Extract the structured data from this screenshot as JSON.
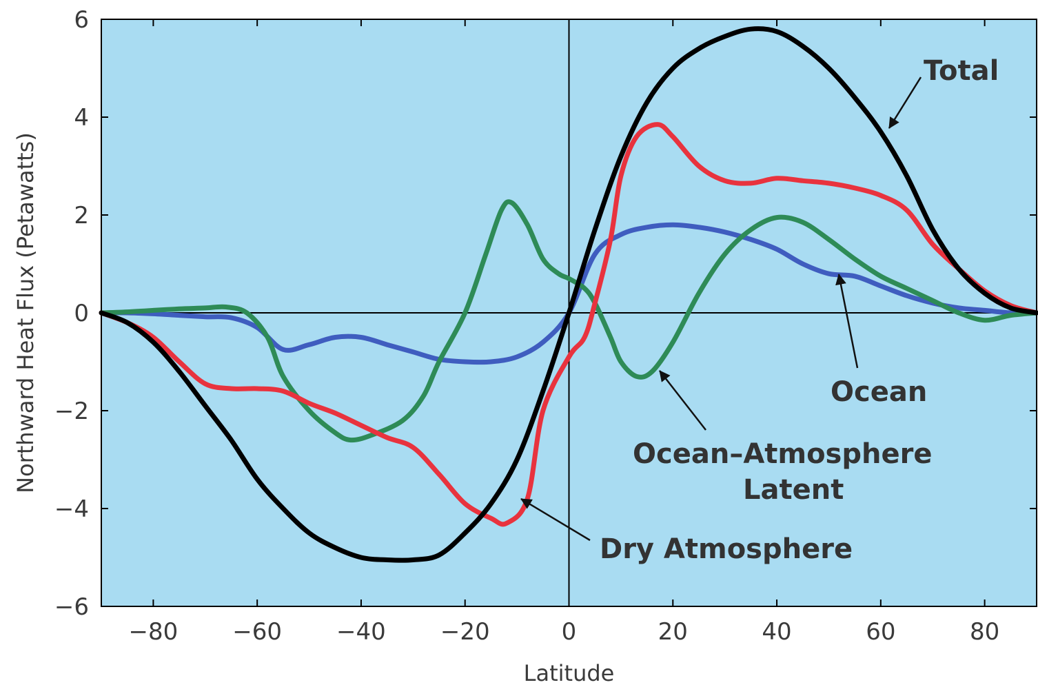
{
  "chart_data": {
    "type": "line",
    "title": "",
    "xlabel": "Latitude",
    "ylabel": "Northward Heat Flux (Petawatts)",
    "xlim": [
      -90,
      90
    ],
    "ylim": [
      -6,
      6
    ],
    "x_ticks": [
      -80,
      -60,
      -40,
      -20,
      0,
      20,
      40,
      60,
      80
    ],
    "x_tick_labels": [
      "−80",
      "−60",
      "−40",
      "−20",
      "0",
      "20",
      "40",
      "60",
      "80"
    ],
    "y_ticks": [
      6,
      4,
      2,
      0,
      -2,
      -4,
      -6
    ],
    "y_tick_labels": [
      "6",
      "4",
      "2",
      "0",
      "−2",
      "−4",
      "−6"
    ],
    "background_color": "#a9dcf2",
    "legend": "inline annotations with arrows",
    "series": [
      {
        "name": "Total",
        "color": "#000000",
        "points": [
          [
            -90,
            0
          ],
          [
            -85,
            -0.2
          ],
          [
            -80,
            -0.6
          ],
          [
            -75,
            -1.2
          ],
          [
            -70,
            -1.9
          ],
          [
            -65,
            -2.6
          ],
          [
            -60,
            -3.4
          ],
          [
            -55,
            -4.0
          ],
          [
            -50,
            -4.5
          ],
          [
            -45,
            -4.8
          ],
          [
            -40,
            -5.0
          ],
          [
            -35,
            -5.05
          ],
          [
            -30,
            -5.05
          ],
          [
            -25,
            -4.95
          ],
          [
            -20,
            -4.5
          ],
          [
            -15,
            -3.9
          ],
          [
            -10,
            -3.0
          ],
          [
            -5,
            -1.6
          ],
          [
            0,
            0
          ],
          [
            5,
            1.7
          ],
          [
            10,
            3.2
          ],
          [
            15,
            4.3
          ],
          [
            20,
            5.0
          ],
          [
            25,
            5.4
          ],
          [
            30,
            5.65
          ],
          [
            35,
            5.8
          ],
          [
            40,
            5.75
          ],
          [
            45,
            5.45
          ],
          [
            50,
            5.0
          ],
          [
            55,
            4.4
          ],
          [
            60,
            3.7
          ],
          [
            65,
            2.8
          ],
          [
            70,
            1.7
          ],
          [
            75,
            0.9
          ],
          [
            80,
            0.4
          ],
          [
            85,
            0.1
          ],
          [
            90,
            0
          ]
        ]
      },
      {
        "name": "Dry Atmosphere",
        "color": "#e8333e",
        "points": [
          [
            -90,
            0
          ],
          [
            -85,
            -0.2
          ],
          [
            -80,
            -0.5
          ],
          [
            -75,
            -1.0
          ],
          [
            -70,
            -1.45
          ],
          [
            -65,
            -1.55
          ],
          [
            -60,
            -1.55
          ],
          [
            -55,
            -1.6
          ],
          [
            -50,
            -1.85
          ],
          [
            -45,
            -2.05
          ],
          [
            -40,
            -2.3
          ],
          [
            -35,
            -2.55
          ],
          [
            -30,
            -2.75
          ],
          [
            -25,
            -3.3
          ],
          [
            -20,
            -3.9
          ],
          [
            -15,
            -4.2
          ],
          [
            -12,
            -4.3
          ],
          [
            -8,
            -3.8
          ],
          [
            -5,
            -2.0
          ],
          [
            0,
            -0.9
          ],
          [
            3,
            -0.5
          ],
          [
            5,
            0.2
          ],
          [
            8,
            1.5
          ],
          [
            10,
            2.8
          ],
          [
            13,
            3.6
          ],
          [
            17,
            3.85
          ],
          [
            20,
            3.6
          ],
          [
            25,
            3.0
          ],
          [
            30,
            2.7
          ],
          [
            35,
            2.65
          ],
          [
            40,
            2.75
          ],
          [
            45,
            2.7
          ],
          [
            50,
            2.65
          ],
          [
            55,
            2.55
          ],
          [
            60,
            2.4
          ],
          [
            65,
            2.1
          ],
          [
            70,
            1.4
          ],
          [
            75,
            0.9
          ],
          [
            80,
            0.45
          ],
          [
            85,
            0.15
          ],
          [
            90,
            0
          ]
        ]
      },
      {
        "name": "Ocean–Atmosphere Latent",
        "color": "#2e8b57",
        "points": [
          [
            -90,
            0
          ],
          [
            -85,
            0.02
          ],
          [
            -80,
            0.05
          ],
          [
            -75,
            0.08
          ],
          [
            -70,
            0.1
          ],
          [
            -66,
            0.12
          ],
          [
            -62,
            0.0
          ],
          [
            -58,
            -0.5
          ],
          [
            -55,
            -1.3
          ],
          [
            -50,
            -2.0
          ],
          [
            -45,
            -2.45
          ],
          [
            -42,
            -2.6
          ],
          [
            -38,
            -2.5
          ],
          [
            -32,
            -2.2
          ],
          [
            -28,
            -1.7
          ],
          [
            -25,
            -1.0
          ],
          [
            -20,
            0.0
          ],
          [
            -16,
            1.2
          ],
          [
            -13,
            2.1
          ],
          [
            -11,
            2.25
          ],
          [
            -8,
            1.8
          ],
          [
            -5,
            1.1
          ],
          [
            -2,
            0.8
          ],
          [
            0,
            0.7
          ],
          [
            3,
            0.5
          ],
          [
            5,
            0.2
          ],
          [
            8,
            -0.5
          ],
          [
            10,
            -1.0
          ],
          [
            13,
            -1.3
          ],
          [
            16,
            -1.2
          ],
          [
            20,
            -0.6
          ],
          [
            25,
            0.4
          ],
          [
            30,
            1.2
          ],
          [
            35,
            1.7
          ],
          [
            40,
            1.95
          ],
          [
            45,
            1.85
          ],
          [
            50,
            1.5
          ],
          [
            55,
            1.1
          ],
          [
            60,
            0.75
          ],
          [
            65,
            0.5
          ],
          [
            70,
            0.25
          ],
          [
            75,
            0.0
          ],
          [
            80,
            -0.15
          ],
          [
            85,
            -0.05
          ],
          [
            90,
            0
          ]
        ]
      },
      {
        "name": "Ocean",
        "color": "#3f5dbf",
        "points": [
          [
            -90,
            0
          ],
          [
            -85,
            0.0
          ],
          [
            -80,
            -0.02
          ],
          [
            -75,
            -0.05
          ],
          [
            -70,
            -0.08
          ],
          [
            -65,
            -0.1
          ],
          [
            -60,
            -0.3
          ],
          [
            -55,
            -0.75
          ],
          [
            -50,
            -0.65
          ],
          [
            -45,
            -0.5
          ],
          [
            -40,
            -0.5
          ],
          [
            -35,
            -0.65
          ],
          [
            -30,
            -0.8
          ],
          [
            -25,
            -0.95
          ],
          [
            -20,
            -1.0
          ],
          [
            -15,
            -1.0
          ],
          [
            -10,
            -0.9
          ],
          [
            -5,
            -0.6
          ],
          [
            0,
            0.0
          ],
          [
            5,
            1.2
          ],
          [
            10,
            1.6
          ],
          [
            15,
            1.75
          ],
          [
            20,
            1.8
          ],
          [
            25,
            1.75
          ],
          [
            30,
            1.65
          ],
          [
            35,
            1.5
          ],
          [
            40,
            1.3
          ],
          [
            45,
            1.0
          ],
          [
            50,
            0.8
          ],
          [
            55,
            0.75
          ],
          [
            60,
            0.55
          ],
          [
            65,
            0.35
          ],
          [
            70,
            0.2
          ],
          [
            75,
            0.1
          ],
          [
            80,
            0.05
          ],
          [
            85,
            0.0
          ],
          [
            90,
            0
          ]
        ]
      }
    ],
    "annotations": [
      {
        "text": "Total",
        "color": "#333333",
        "anchor": [
          59,
          3.7
        ],
        "arrow_from": [
          66.5,
          4.8
        ],
        "lines": [
          "Total"
        ],
        "label_at": [
          64,
          5.0
        ]
      },
      {
        "text": "Ocean",
        "color": "#333333",
        "anchor": [
          52,
          0.7
        ],
        "arrow_from": [
          55,
          -1.1
        ],
        "lines": [
          "Ocean"
        ],
        "label_at": [
          40,
          -1.75
        ]
      },
      {
        "text": "Ocean–Atmosphere Latent",
        "color": "#333333",
        "anchor": [
          17,
          -1.2
        ],
        "arrow_from": [
          26,
          -2.5
        ],
        "lines": [
          "Ocean–Atmosphere",
          "Latent"
        ],
        "label_at": [
          14,
          -3.05
        ]
      },
      {
        "text": "Dry Atmosphere",
        "color": "#333333",
        "anchor": [
          -9,
          -3.8
        ],
        "arrow_from": [
          4,
          -4.85
        ],
        "lines": [
          "Dry Atmosphere"
        ],
        "label_at": [
          6,
          -4.85
        ]
      }
    ]
  }
}
